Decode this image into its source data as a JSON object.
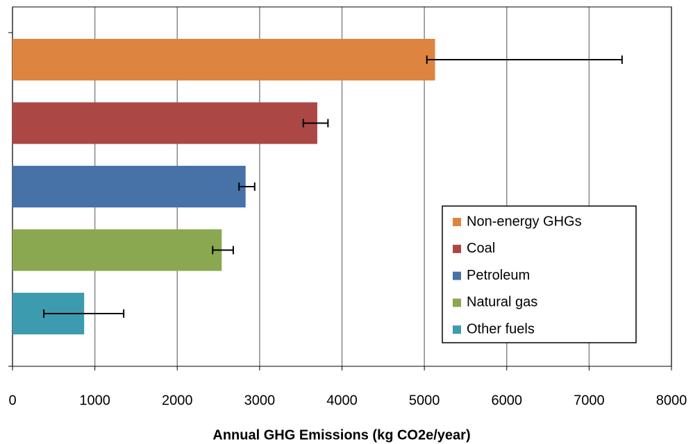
{
  "chart_data": {
    "type": "barh",
    "xlabel": "Annual GHG  Emissions  (kg CO2e/year)",
    "categories": [
      "Non-energy GHGs",
      "Coal",
      "Petroleum",
      "Natural gas",
      "Other fuels"
    ],
    "values": [
      5130,
      3700,
      2830,
      2540,
      870
    ],
    "error_minus": [
      100,
      170,
      80,
      110,
      490
    ],
    "error_plus": [
      2270,
      130,
      110,
      140,
      480
    ],
    "colors": [
      "#dd8440",
      "#ab4745",
      "#4672a8",
      "#8aa84f",
      "#3d9bb0"
    ],
    "xlim": [
      0,
      8000
    ],
    "xticks": [
      0,
      1000,
      2000,
      3000,
      4000,
      5000,
      6000,
      7000,
      8000
    ],
    "grid": true,
    "legend": "lower right"
  }
}
